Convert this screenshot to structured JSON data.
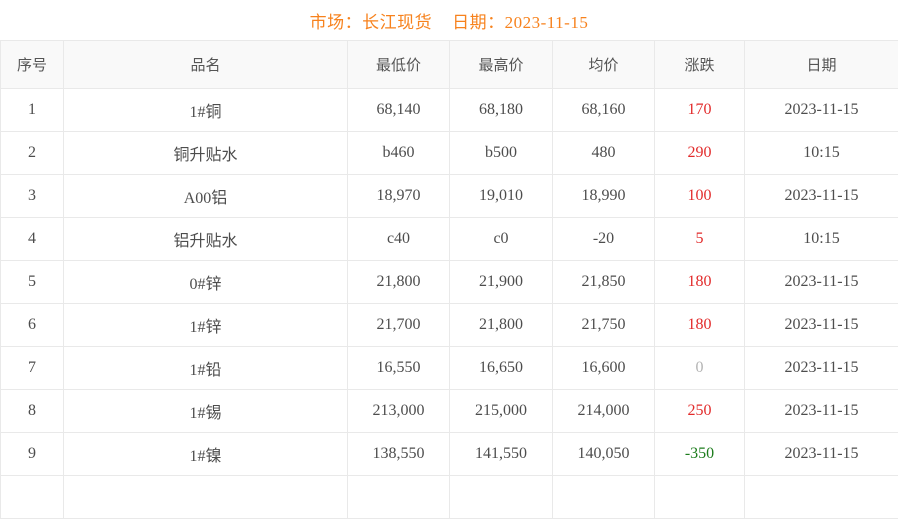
{
  "header": {
    "market_label": "市场：长江现货",
    "date_label": "日期：2023-11-15"
  },
  "table": {
    "columns": [
      "序号",
      "品名",
      "最低价",
      "最高价",
      "均价",
      "涨跌",
      "日期"
    ],
    "rows": [
      {
        "no": "1",
        "name": "1#铜",
        "low": "68,140",
        "high": "68,180",
        "avg": "68,160",
        "change": "170",
        "change_dir": "up",
        "date": "2023-11-15"
      },
      {
        "no": "2",
        "name": "铜升贴水",
        "low": "b460",
        "high": "b500",
        "avg": "480",
        "change": "290",
        "change_dir": "up",
        "date": "10:15"
      },
      {
        "no": "3",
        "name": "A00铝",
        "low": "18,970",
        "high": "19,010",
        "avg": "18,990",
        "change": "100",
        "change_dir": "up",
        "date": "2023-11-15"
      },
      {
        "no": "4",
        "name": "铝升贴水",
        "low": "c40",
        "high": "c0",
        "avg": "-20",
        "change": "5",
        "change_dir": "up",
        "date": "10:15"
      },
      {
        "no": "5",
        "name": "0#锌",
        "low": "21,800",
        "high": "21,900",
        "avg": "21,850",
        "change": "180",
        "change_dir": "up",
        "date": "2023-11-15"
      },
      {
        "no": "6",
        "name": "1#锌",
        "low": "21,700",
        "high": "21,800",
        "avg": "21,750",
        "change": "180",
        "change_dir": "up",
        "date": "2023-11-15"
      },
      {
        "no": "7",
        "name": "1#铅",
        "low": "16,550",
        "high": "16,650",
        "avg": "16,600",
        "change": "0",
        "change_dir": "flat",
        "date": "2023-11-15"
      },
      {
        "no": "8",
        "name": "1#锡",
        "low": "213,000",
        "high": "215,000",
        "avg": "214,000",
        "change": "250",
        "change_dir": "up",
        "date": "2023-11-15"
      },
      {
        "no": "9",
        "name": "1#镍",
        "low": "138,550",
        "high": "141,550",
        "avg": "140,050",
        "change": "-350",
        "change_dir": "down",
        "date": "2023-11-15"
      }
    ]
  },
  "colors": {
    "accent_orange": "#f7821d",
    "change_up_red": "#e22b2b",
    "change_down_green": "#1c7c1c",
    "change_flat_gray": "#b3b3b3",
    "header_bg": "#f9f9f9",
    "border": "#e9e9e9",
    "text": "#4d4d4d"
  }
}
